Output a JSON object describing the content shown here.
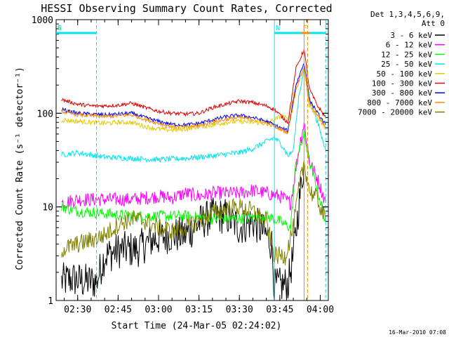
{
  "chart_data": {
    "type": "line",
    "title": "HESSI Observing Summary Count Rates, Corrected",
    "xlabel": "Start Time (24-Mar-05 02:24:02)",
    "ylabel": "Corrected Count Rate (s⁻¹ detector⁻¹)",
    "y_scale": "log",
    "ylim": [
      1,
      1000
    ],
    "xlim_minutes": [
      142,
      243
    ],
    "x_ticks": [
      {
        "label": "02:30",
        "minute": 150
      },
      {
        "label": "02:45",
        "minute": 165
      },
      {
        "label": "03:00",
        "minute": 180
      },
      {
        "label": "03:15",
        "minute": 195
      },
      {
        "label": "03:30",
        "minute": 210
      },
      {
        "label": "03:45",
        "minute": 225
      },
      {
        "label": "04:00",
        "minute": 240
      }
    ],
    "y_ticks": [
      {
        "label": "1",
        "value": 1
      },
      {
        "label": "10",
        "value": 10
      },
      {
        "label": "100",
        "value": 100
      },
      {
        "label": "1000",
        "value": 1000
      }
    ],
    "legend": {
      "position": "right",
      "header": [
        "Det 1,3,4,5,6,9,",
        "Att 0"
      ],
      "entries": [
        {
          "label": "3 - 6 keV",
          "color": "#000000"
        },
        {
          "label": "6 - 12 keV",
          "color": "#ff00ff"
        },
        {
          "label": "12 - 25 keV",
          "color": "#00ff00"
        },
        {
          "label": "25 - 50 keV",
          "color": "#00e5ee"
        },
        {
          "label": "50 - 100 keV",
          "color": "#e6c800"
        },
        {
          "label": "100 - 300 keV",
          "color": "#e00000"
        },
        {
          "label": "300 - 800 keV",
          "color": "#0000ff"
        },
        {
          "label": "800 - 7000 keV",
          "color": "#ff8c00"
        },
        {
          "label": "7000 - 20000 keV",
          "color": "#808000"
        }
      ]
    },
    "flags": [
      {
        "label": "S",
        "color": "#ff8c00",
        "start": 142,
        "end": 157
      },
      {
        "label": "N",
        "color": "#00e5ee",
        "start": 142,
        "end": 157
      },
      {
        "label": "N",
        "color": "#00e5ee",
        "start": 223,
        "end": 242
      },
      {
        "label": "F",
        "color": "#ff8c00",
        "start": 233,
        "end": 236
      }
    ],
    "vlines": [
      {
        "minute": 142,
        "color": "#00e5ee",
        "style": "dashed"
      },
      {
        "minute": 157,
        "color": "#00e5ee",
        "style": "dashed"
      },
      {
        "minute": 223,
        "color": "#00e5ee",
        "style": "solid"
      },
      {
        "minute": 234,
        "color": "#ff8c00",
        "style": "solid"
      },
      {
        "minute": 235.3,
        "color": "#ff8c00",
        "style": "dashed"
      },
      {
        "minute": 242,
        "color": "#00e5ee",
        "style": "dashed"
      }
    ],
    "series": [
      {
        "name": "3 - 6 keV",
        "color": "#000000",
        "noise": 0.4,
        "points": [
          [
            144,
            1.6
          ],
          [
            148,
            1.7
          ],
          [
            152,
            1.6
          ],
          [
            157,
            1.6
          ],
          [
            160,
            3
          ],
          [
            166,
            3.5
          ],
          [
            172,
            3.5
          ],
          [
            178,
            4.5
          ],
          [
            184,
            5
          ],
          [
            190,
            5
          ],
          [
            196,
            7
          ],
          [
            200,
            8
          ],
          [
            205,
            8
          ],
          [
            210,
            6
          ],
          [
            215,
            7
          ],
          [
            220,
            5
          ],
          [
            222,
            4
          ],
          [
            223,
            1.4
          ],
          [
            228,
            1.5
          ],
          [
            230,
            3
          ],
          [
            232,
            10
          ],
          [
            234,
            30
          ]
        ]
      },
      {
        "name": "6 - 12 keV",
        "color": "#ff00ff",
        "noise": 0.15,
        "points": [
          [
            144,
            11
          ],
          [
            150,
            12
          ],
          [
            160,
            12
          ],
          [
            170,
            12
          ],
          [
            180,
            13
          ],
          [
            185,
            12.5
          ],
          [
            190,
            14
          ],
          [
            195,
            13
          ],
          [
            200,
            14
          ],
          [
            205,
            14
          ],
          [
            210,
            14
          ],
          [
            215,
            15
          ],
          [
            220,
            14
          ],
          [
            225,
            13
          ],
          [
            229,
            11
          ],
          [
            232,
            40
          ],
          [
            234,
            80
          ],
          [
            236,
            30
          ],
          [
            239,
            20
          ],
          [
            242,
            11
          ]
        ]
      },
      {
        "name": "12 - 25 keV",
        "color": "#00ff00",
        "noise": 0.12,
        "points": [
          [
            144,
            10
          ],
          [
            150,
            9
          ],
          [
            160,
            8.5
          ],
          [
            170,
            8
          ],
          [
            180,
            8
          ],
          [
            190,
            8
          ],
          [
            200,
            7.5
          ],
          [
            210,
            7.5
          ],
          [
            220,
            8
          ],
          [
            225,
            7
          ],
          [
            229,
            6
          ],
          [
            231,
            30
          ],
          [
            234,
            60
          ],
          [
            236,
            30
          ],
          [
            239,
            15
          ],
          [
            242,
            7
          ]
        ]
      },
      {
        "name": "25 - 50 keV",
        "color": "#00e5ee",
        "noise": 0.06,
        "points": [
          [
            144,
            36
          ],
          [
            150,
            38
          ],
          [
            155,
            36
          ],
          [
            160,
            34
          ],
          [
            170,
            33
          ],
          [
            180,
            32
          ],
          [
            190,
            33
          ],
          [
            200,
            35
          ],
          [
            210,
            38
          ],
          [
            215,
            42
          ],
          [
            220,
            50
          ],
          [
            223,
            55
          ],
          [
            226,
            45
          ],
          [
            228,
            35
          ],
          [
            230,
            40
          ],
          [
            232,
            150
          ],
          [
            234,
            300
          ],
          [
            236,
            150
          ],
          [
            239,
            80
          ],
          [
            242,
            40
          ]
        ]
      },
      {
        "name": "50 - 100 keV",
        "color": "#e6c800",
        "noise": 0.05,
        "points": [
          [
            144,
            85
          ],
          [
            150,
            82
          ],
          [
            155,
            80
          ],
          [
            160,
            78
          ],
          [
            165,
            80
          ],
          [
            170,
            80
          ],
          [
            175,
            72
          ],
          [
            180,
            68
          ],
          [
            185,
            66
          ],
          [
            190,
            68
          ],
          [
            195,
            72
          ],
          [
            200,
            75
          ],
          [
            205,
            80
          ],
          [
            210,
            82
          ],
          [
            215,
            80
          ],
          [
            220,
            78
          ],
          [
            223,
            85
          ],
          [
            226,
            95
          ],
          [
            228,
            85
          ],
          [
            231,
            200
          ],
          [
            234,
            300
          ],
          [
            236,
            120
          ],
          [
            239,
            90
          ],
          [
            242,
            70
          ]
        ]
      },
      {
        "name": "100 - 300 keV",
        "color": "#e00000",
        "noise": 0.04,
        "points": [
          [
            144,
            140
          ],
          [
            150,
            125
          ],
          [
            155,
            120
          ],
          [
            160,
            120
          ],
          [
            165,
            122
          ],
          [
            170,
            128
          ],
          [
            175,
            115
          ],
          [
            180,
            105
          ],
          [
            185,
            100
          ],
          [
            190,
            98
          ],
          [
            195,
            100
          ],
          [
            200,
            115
          ],
          [
            205,
            125
          ],
          [
            210,
            135
          ],
          [
            215,
            130
          ],
          [
            220,
            120
          ],
          [
            223,
            110
          ],
          [
            226,
            90
          ],
          [
            228,
            80
          ],
          [
            231,
            300
          ],
          [
            234,
            480
          ],
          [
            236,
            180
          ],
          [
            239,
            120
          ],
          [
            242,
            90
          ]
        ]
      },
      {
        "name": "300 - 800 keV",
        "color": "#0000ff",
        "noise": 0.04,
        "points": [
          [
            144,
            110
          ],
          [
            150,
            100
          ],
          [
            155,
            98
          ],
          [
            160,
            96
          ],
          [
            165,
            98
          ],
          [
            170,
            100
          ],
          [
            175,
            90
          ],
          [
            180,
            82
          ],
          [
            185,
            76
          ],
          [
            190,
            75
          ],
          [
            195,
            78
          ],
          [
            200,
            85
          ],
          [
            205,
            92
          ],
          [
            210,
            95
          ],
          [
            215,
            90
          ],
          [
            220,
            82
          ],
          [
            223,
            75
          ],
          [
            226,
            68
          ],
          [
            228,
            65
          ],
          [
            231,
            200
          ],
          [
            234,
            350
          ],
          [
            236,
            140
          ],
          [
            239,
            100
          ],
          [
            242,
            75
          ]
        ]
      },
      {
        "name": "800 - 7000 keV",
        "color": "#ff8c00",
        "noise": 0.04,
        "points": [
          [
            144,
            105
          ],
          [
            150,
            96
          ],
          [
            155,
            94
          ],
          [
            160,
            92
          ],
          [
            165,
            94
          ],
          [
            170,
            96
          ],
          [
            175,
            86
          ],
          [
            180,
            78
          ],
          [
            185,
            72
          ],
          [
            190,
            71
          ],
          [
            195,
            74
          ],
          [
            200,
            80
          ],
          [
            205,
            86
          ],
          [
            210,
            90
          ],
          [
            215,
            86
          ],
          [
            220,
            78
          ],
          [
            223,
            72
          ],
          [
            226,
            66
          ],
          [
            228,
            62
          ],
          [
            231,
            180
          ],
          [
            234,
            320
          ],
          [
            236,
            130
          ],
          [
            239,
            95
          ],
          [
            242,
            70
          ]
        ]
      },
      {
        "name": "7000 - 20000 keV",
        "color": "#808000",
        "noise": 0.2,
        "points": [
          [
            144,
            3.5
          ],
          [
            150,
            4
          ],
          [
            156,
            4.5
          ],
          [
            160,
            5
          ],
          [
            165,
            6.5
          ],
          [
            170,
            7.5
          ],
          [
            175,
            7
          ],
          [
            180,
            6
          ],
          [
            185,
            5.5
          ],
          [
            190,
            6
          ],
          [
            195,
            7
          ],
          [
            200,
            8.5
          ],
          [
            205,
            9.5
          ],
          [
            210,
            10
          ],
          [
            215,
            9
          ],
          [
            220,
            7
          ],
          [
            223,
            3
          ],
          [
            227,
            3
          ],
          [
            230,
            6
          ],
          [
            232,
            15
          ],
          [
            234,
            30
          ],
          [
            236,
            15
          ],
          [
            239,
            12
          ],
          [
            242,
            7
          ]
        ]
      }
    ]
  },
  "footer": {
    "timestamp": "16-Mar-2010 07:08"
  }
}
